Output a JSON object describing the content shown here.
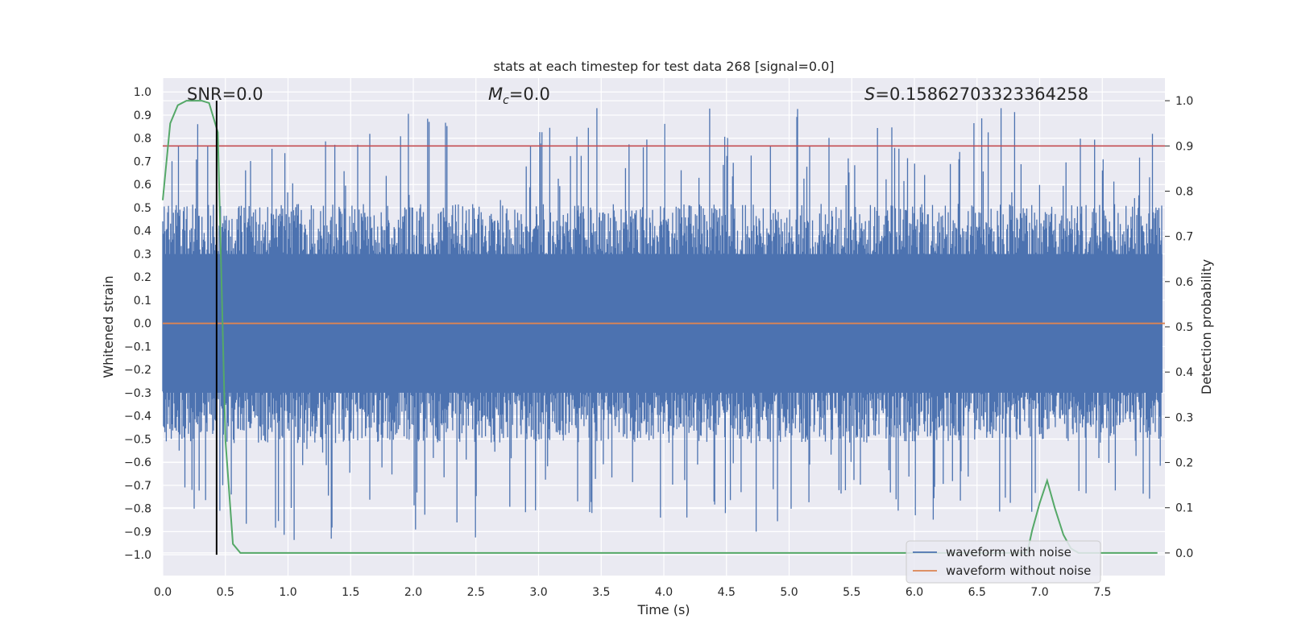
{
  "chart_data": {
    "type": "line",
    "title": "stats at each timestep for test data 268 [signal=0.0]",
    "xlabel": "Time (s)",
    "ylabel": "Whitened strain",
    "ylabel_right": "Detection probability",
    "xlim": [
      0.0,
      8.0
    ],
    "ylim": [
      -1.09,
      1.06
    ],
    "ylim_right": [
      -0.05,
      1.05
    ],
    "x_ticks": [
      "0.0",
      "0.5",
      "1.0",
      "1.5",
      "2.0",
      "2.5",
      "3.0",
      "3.5",
      "4.0",
      "4.5",
      "5.0",
      "5.5",
      "6.0",
      "6.5",
      "7.0",
      "7.5"
    ],
    "y_ticks": [
      "1.0",
      "0.9",
      "0.8",
      "0.7",
      "0.6",
      "0.5",
      "0.4",
      "0.3",
      "0.2",
      "0.1",
      "0.0",
      "-0.1",
      "-0.2",
      "-0.3",
      "-0.4",
      "-0.5",
      "-0.6",
      "-0.7",
      "-0.8",
      "-0.9",
      "-1.0"
    ],
    "y_ticks_right": [
      "1.0",
      "0.9",
      "0.8",
      "0.7",
      "0.6",
      "0.5",
      "0.4",
      "0.3",
      "0.2",
      "0.1",
      "0.0"
    ],
    "annotations": {
      "snr": "SNR=0.0",
      "mc_symbol": "M",
      "mc_subscript": "c",
      "mc_value": "=0.0",
      "s_symbol": "S",
      "s_value": "=0.15862703323364258"
    },
    "threshold": 0.9,
    "vertical_marker_time": 0.43,
    "legend": {
      "placement": "lower-right",
      "entries": [
        {
          "label": "waveform with noise",
          "color": "#4c72b0"
        },
        {
          "label": "waveform without noise",
          "color": "#dd8452"
        }
      ]
    },
    "series": [
      {
        "name": "waveform with noise",
        "axis": "left",
        "color": "#4c72b0",
        "description": "whitened noise, 4096 Hz, roughly uniform amplitude ~0.45 with peaks to ±0.9",
        "amplitude": 0.45,
        "peak_max": 0.93,
        "peak_min": -1.0
      },
      {
        "name": "waveform without noise",
        "axis": "left",
        "color": "#dd8452",
        "x": [
          0.0,
          8.0
        ],
        "y": [
          0.0,
          0.0
        ]
      },
      {
        "name": "detection probability",
        "axis": "right",
        "color": "#55a868",
        "x": [
          0.0,
          0.06,
          0.12,
          0.19,
          0.25,
          0.31,
          0.37,
          0.44,
          0.5,
          0.56,
          0.62,
          0.69,
          1.0,
          1.5,
          2.0,
          3.0,
          4.0,
          5.0,
          6.0,
          6.9,
          6.94,
          7.0,
          7.06,
          7.12,
          7.19,
          7.25,
          7.31,
          7.5,
          7.94
        ],
        "y": [
          0.78,
          0.95,
          0.99,
          1.0,
          1.0,
          1.0,
          0.995,
          0.93,
          0.25,
          0.02,
          0.0,
          0.0,
          0.0,
          0.0,
          0.0,
          0.0,
          0.0,
          0.0,
          0.0,
          0.0,
          0.05,
          0.11,
          0.16,
          0.1,
          0.04,
          0.01,
          0.0,
          0.0,
          0.0
        ]
      },
      {
        "name": "threshold",
        "axis": "right",
        "color": "#c44e52",
        "x": [
          0.0,
          8.0
        ],
        "y": [
          0.9,
          0.9
        ]
      }
    ]
  }
}
